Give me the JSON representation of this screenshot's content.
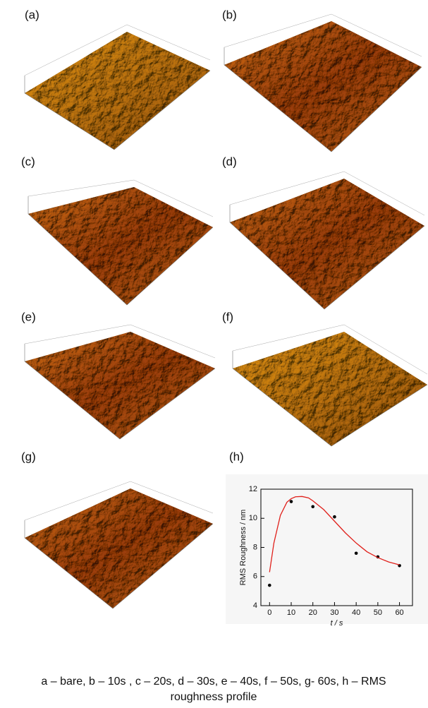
{
  "panel_labels": [
    "(a)",
    "(b)",
    "(c)",
    "(d)",
    "(e)",
    "(f)",
    "(g)",
    "(h)"
  ],
  "chart_data": {
    "type": "scatter",
    "xlabel": "t / s",
    "ylabel": "RMS Roughness / nm",
    "xlim": [
      -4,
      66
    ],
    "ylim": [
      4,
      12
    ],
    "xticks": [
      0,
      10,
      20,
      30,
      40,
      50,
      60
    ],
    "yticks": [
      4,
      6,
      8,
      10,
      12
    ],
    "series": [
      {
        "mode": "markers",
        "color": "#000000",
        "x": [
          0,
          10,
          20,
          30,
          40,
          50,
          60
        ],
        "values": [
          5.4,
          11.15,
          10.8,
          10.1,
          7.6,
          7.35,
          6.75
        ]
      },
      {
        "mode": "line",
        "color": "#e0201b",
        "x": [
          0,
          2,
          5,
          8,
          10,
          12,
          15,
          18,
          20,
          25,
          30,
          35,
          40,
          45,
          50,
          55,
          60
        ],
        "values": [
          6.3,
          8.3,
          10.2,
          11.1,
          11.35,
          11.48,
          11.5,
          11.4,
          11.2,
          10.6,
          9.8,
          9.0,
          8.3,
          7.7,
          7.3,
          7.0,
          6.8
        ]
      }
    ]
  },
  "caption": [
    "a – bare, b – 10s , c – 20s, d – 30s, e – 40s, f – 50s, g- 60s, h – RMS",
    "roughness profile"
  ]
}
